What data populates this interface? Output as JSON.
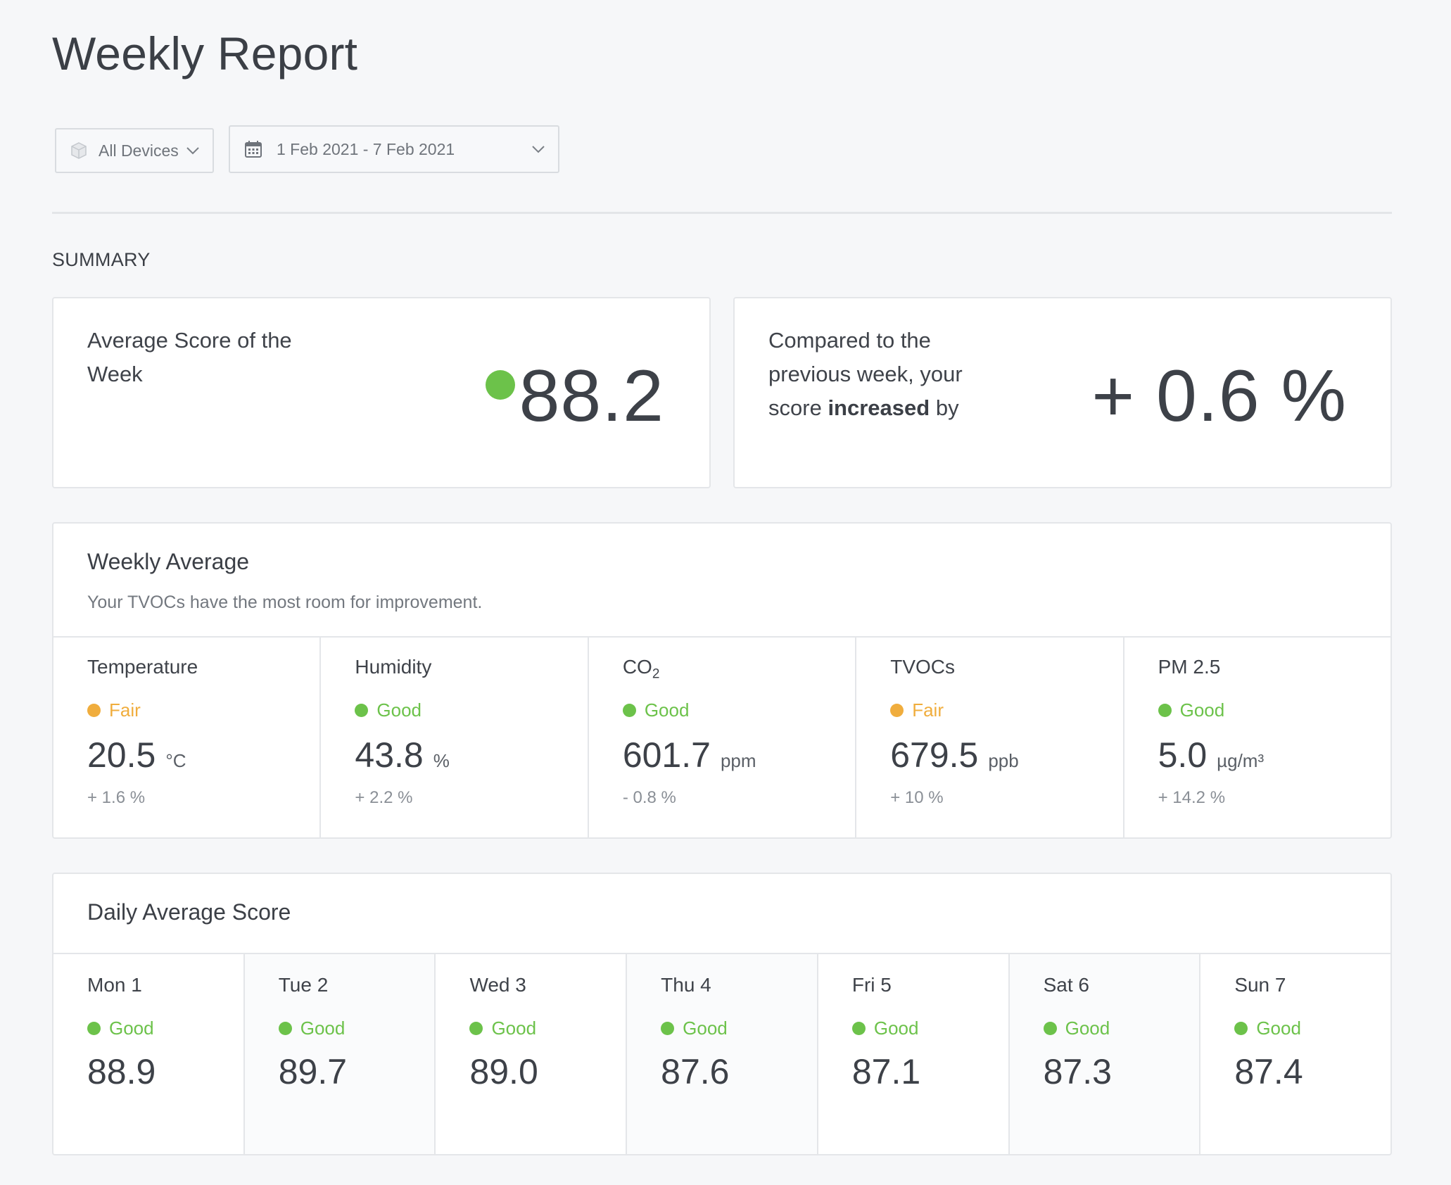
{
  "header": {
    "title": "Weekly Report"
  },
  "filters": {
    "device": {
      "label": "All Devices",
      "icon": "cube-icon"
    },
    "date_range": {
      "label": "1 Feb 2021 - 7 Feb 2021",
      "icon": "calendar-icon"
    }
  },
  "summary": {
    "section_label": "SUMMARY",
    "average_score": {
      "label": "Average Score of the Week",
      "value": "88.2",
      "status_color": "#6cc24a"
    },
    "comparison": {
      "label_pre": "Compared to the previous week, your score",
      "label_bold": "increased",
      "label_post": "by",
      "value": "+ 0.6 %"
    }
  },
  "weekly_average": {
    "title": "Weekly Average",
    "subtitle": "Your TVOCs have the most room for improvement.",
    "metrics": [
      {
        "name": "Temperature",
        "name_sub": "",
        "status": "Fair",
        "value": "20.5",
        "unit": "°C",
        "change": "+ 1.6 %"
      },
      {
        "name": "Humidity",
        "name_sub": "",
        "status": "Good",
        "value": "43.8",
        "unit": "%",
        "change": "+ 2.2 %"
      },
      {
        "name": "CO",
        "name_sub": "2",
        "status": "Good",
        "value": "601.7",
        "unit": "ppm",
        "change": "- 0.8 %"
      },
      {
        "name": "TVOCs",
        "name_sub": "",
        "status": "Fair",
        "value": "679.5",
        "unit": "ppb",
        "change": "+ 10 %"
      },
      {
        "name": "PM 2.5",
        "name_sub": "",
        "status": "Good",
        "value": "5.0",
        "unit": "µg/m³",
        "change": "+ 14.2 %"
      }
    ]
  },
  "daily_average": {
    "title": "Daily Average Score",
    "days": [
      {
        "label": "Mon 1",
        "status": "Good",
        "value": "88.9"
      },
      {
        "label": "Tue 2",
        "status": "Good",
        "value": "89.7"
      },
      {
        "label": "Wed 3",
        "status": "Good",
        "value": "89.0"
      },
      {
        "label": "Thu 4",
        "status": "Good",
        "value": "87.6"
      },
      {
        "label": "Fri 5",
        "status": "Good",
        "value": "87.1"
      },
      {
        "label": "Sat 6",
        "status": "Good",
        "value": "87.3"
      },
      {
        "label": "Sun 7",
        "status": "Good",
        "value": "87.4"
      }
    ]
  },
  "colors": {
    "good": "#6cc24a",
    "fair": "#f0ad3d"
  }
}
